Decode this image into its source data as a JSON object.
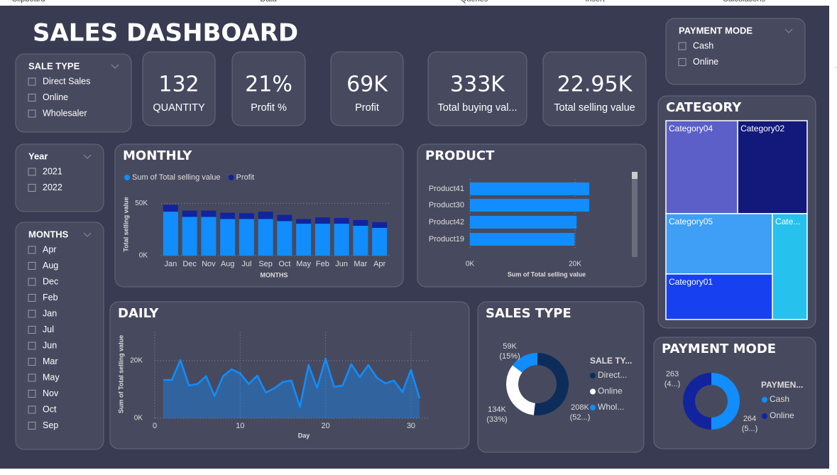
{
  "ribbon": [
    "Clipboard",
    "Data",
    "Queries",
    "Insert",
    "Calculations"
  ],
  "title": "SALES DASHBOARD",
  "slicers": [
    {
      "title": "SALE TYPE",
      "items": [
        "Direct Sales",
        "Online",
        "Wholesaler"
      ]
    },
    {
      "title": "PAYMENT MODE",
      "items": [
        "Cash",
        "Online"
      ]
    },
    {
      "title": "Year",
      "items": [
        "2021",
        "2022"
      ]
    },
    {
      "title": "MONTHS",
      "items": [
        "Apr",
        "Aug",
        "Dec",
        "Feb",
        "Jan",
        "Jul",
        "Jun",
        "Mar",
        "May",
        "Nov",
        "Oct",
        "Sep"
      ]
    }
  ],
  "cards": [
    {
      "value": "132",
      "label": "QUANTITY"
    },
    {
      "value": "21%",
      "label": "Profit %"
    },
    {
      "value": "69K",
      "label": "Profit"
    },
    {
      "value": "333K",
      "label": "Total buying val..."
    },
    {
      "value": "22.95K",
      "label": "Total selling value"
    }
  ],
  "chart_data": [
    {
      "type": "stacked_bar",
      "title": "MONTHLY",
      "categories": [
        "Jan",
        "Dec",
        "Nov",
        "Aug",
        "Jul",
        "Sep",
        "Oct",
        "May",
        "Feb",
        "Jun",
        "Mar",
        "Apr"
      ],
      "series": [
        {
          "name": "Sum of Total selling value",
          "color": "#118dff",
          "values": [
            42000,
            37000,
            37000,
            35000,
            35000,
            35000,
            33000,
            30500,
            30500,
            30500,
            28500,
            26500
          ]
        },
        {
          "name": "Profit",
          "color": "#12239e",
          "values": [
            6500,
            6000,
            6000,
            6000,
            5500,
            7000,
            6000,
            4500,
            6000,
            5500,
            5500,
            5500
          ]
        }
      ],
      "ylim": [
        0,
        57000
      ],
      "yticks": [
        {
          "value": 0,
          "label": "0K"
        },
        {
          "value": 50000,
          "label": "50K"
        }
      ],
      "y_label": "Total selling value",
      "x_label": "MONTHS",
      "grid": true
    },
    {
      "type": "hbar",
      "title": "PRODUCT",
      "categories": [
        "Product41",
        "Product30",
        "Product42",
        "Product19"
      ],
      "values": [
        22700,
        22700,
        20300,
        19900
      ],
      "color": "#118dff",
      "xlim": [
        0,
        29000
      ],
      "xticks": [
        {
          "value": 0,
          "label": "0K"
        },
        {
          "value": 20000,
          "label": "20K"
        }
      ],
      "x_label": "Sum of Total selling value",
      "grid": true
    },
    {
      "type": "treemap",
      "title": "CATEGORY",
      "categories": [
        "Category04",
        "Category02",
        "Category05",
        "Cate...",
        "Category01"
      ],
      "values": [
        95000,
        92000,
        91500,
        52500,
        69000
      ],
      "colors": [
        "#5b5fc7",
        "#12197a",
        "#3f9ef5",
        "#27c1ee",
        "#1740f0"
      ]
    },
    {
      "type": "area",
      "title": "DAILY",
      "x": [
        1,
        2,
        3,
        4,
        5,
        6,
        7,
        8,
        9,
        10,
        11,
        12,
        13,
        14,
        15,
        16,
        17,
        18,
        19,
        20,
        21,
        22,
        23,
        24,
        25,
        26,
        27,
        28,
        29,
        30,
        31
      ],
      "values": [
        13300,
        13300,
        20200,
        11400,
        11900,
        14600,
        7700,
        14600,
        17000,
        15600,
        11900,
        14800,
        8900,
        10400,
        12600,
        13100,
        4000,
        18500,
        10600,
        20700,
        10900,
        11400,
        18800,
        14300,
        18500,
        14100,
        12100,
        13100,
        9100,
        16800,
        6900
      ],
      "color": "#118dff",
      "xlim": [
        0,
        32
      ],
      "xticks": [
        0,
        10,
        20,
        30
      ],
      "ylim": [
        0,
        30000
      ],
      "yticks": [
        {
          "value": 0,
          "label": "0K"
        },
        {
          "value": 20000,
          "label": "20K"
        }
      ],
      "y_label": "Sum of Total selling value",
      "x_label": "Day",
      "grid": true
    },
    {
      "type": "donut",
      "title": "SALES TYPE",
      "legend_title": "SALE TY...",
      "categories": [
        "Direct...",
        "Online",
        "Whol..."
      ],
      "values": [
        208000,
        134000,
        59000
      ],
      "value_labels": [
        "208K",
        "134K",
        "59K"
      ],
      "percent_labels": [
        "(52...)",
        "(33%)",
        "(15%)"
      ],
      "colors": [
        "#0e2c5a",
        "#ffffff",
        "#118dff"
      ]
    },
    {
      "type": "donut",
      "title": "PAYMENT MODE",
      "legend_title": "PAYMEN...",
      "categories": [
        "Cash",
        "Online"
      ],
      "values": [
        264,
        263
      ],
      "value_labels": [
        "264",
        "263"
      ],
      "percent_labels": [
        "(5...)",
        "(4...)"
      ],
      "colors": [
        "#118dff",
        "#12239e"
      ]
    }
  ]
}
